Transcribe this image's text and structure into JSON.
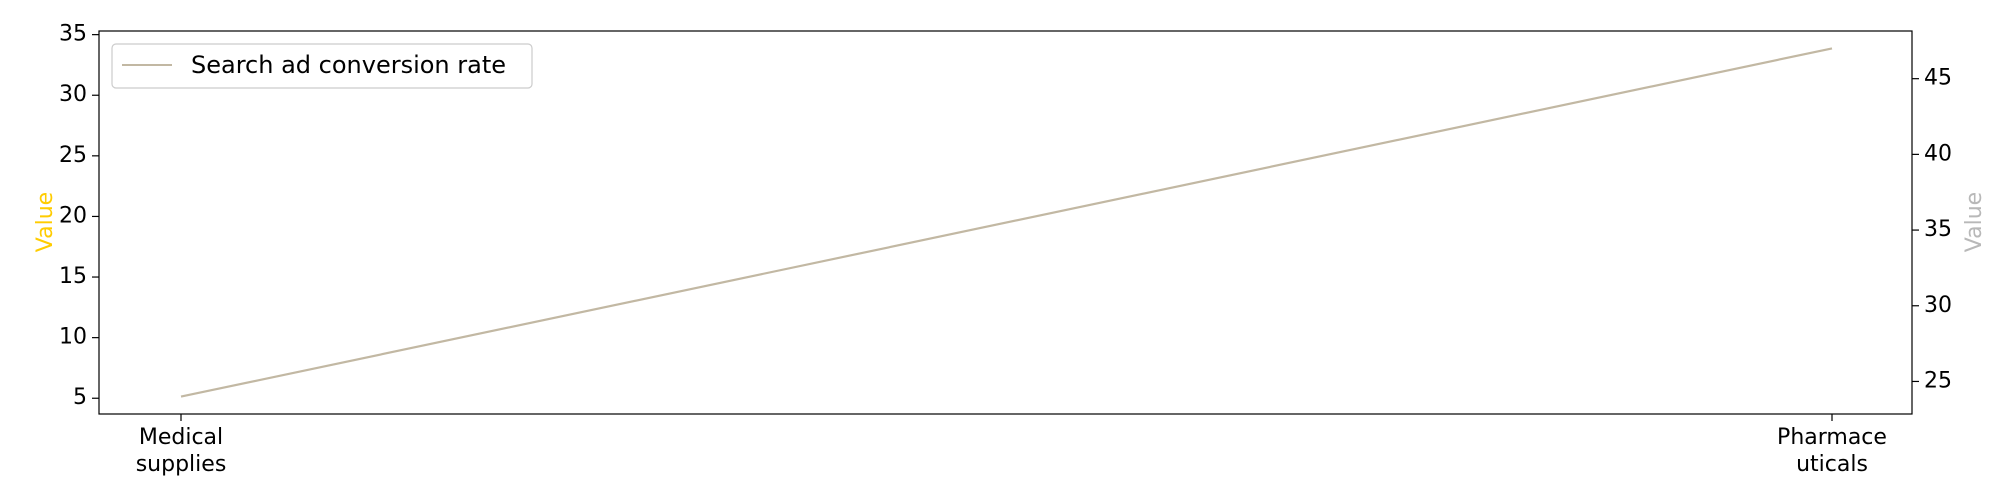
{
  "chart_data": {
    "type": "line",
    "categories": [
      "Medical\nsupplies",
      "Pharmace\nuticals"
    ],
    "series": [
      {
        "name": "Search ad conversion rate",
        "axis": "right",
        "values": [
          24,
          47
        ],
        "color": "#c2b8a3"
      }
    ],
    "left_axis": {
      "label": "Value",
      "label_color": "#ffcc00",
      "range": [
        3.7,
        35.3
      ],
      "ticks": [
        5,
        10,
        15,
        20,
        25,
        30,
        35
      ]
    },
    "right_axis": {
      "label": "Value",
      "label_color": "#b8b8b8",
      "range": [
        22.85,
        48.15
      ],
      "ticks": [
        25,
        30,
        35,
        40,
        45
      ]
    },
    "legend": {
      "placement": "upper-left"
    },
    "grid": false
  }
}
